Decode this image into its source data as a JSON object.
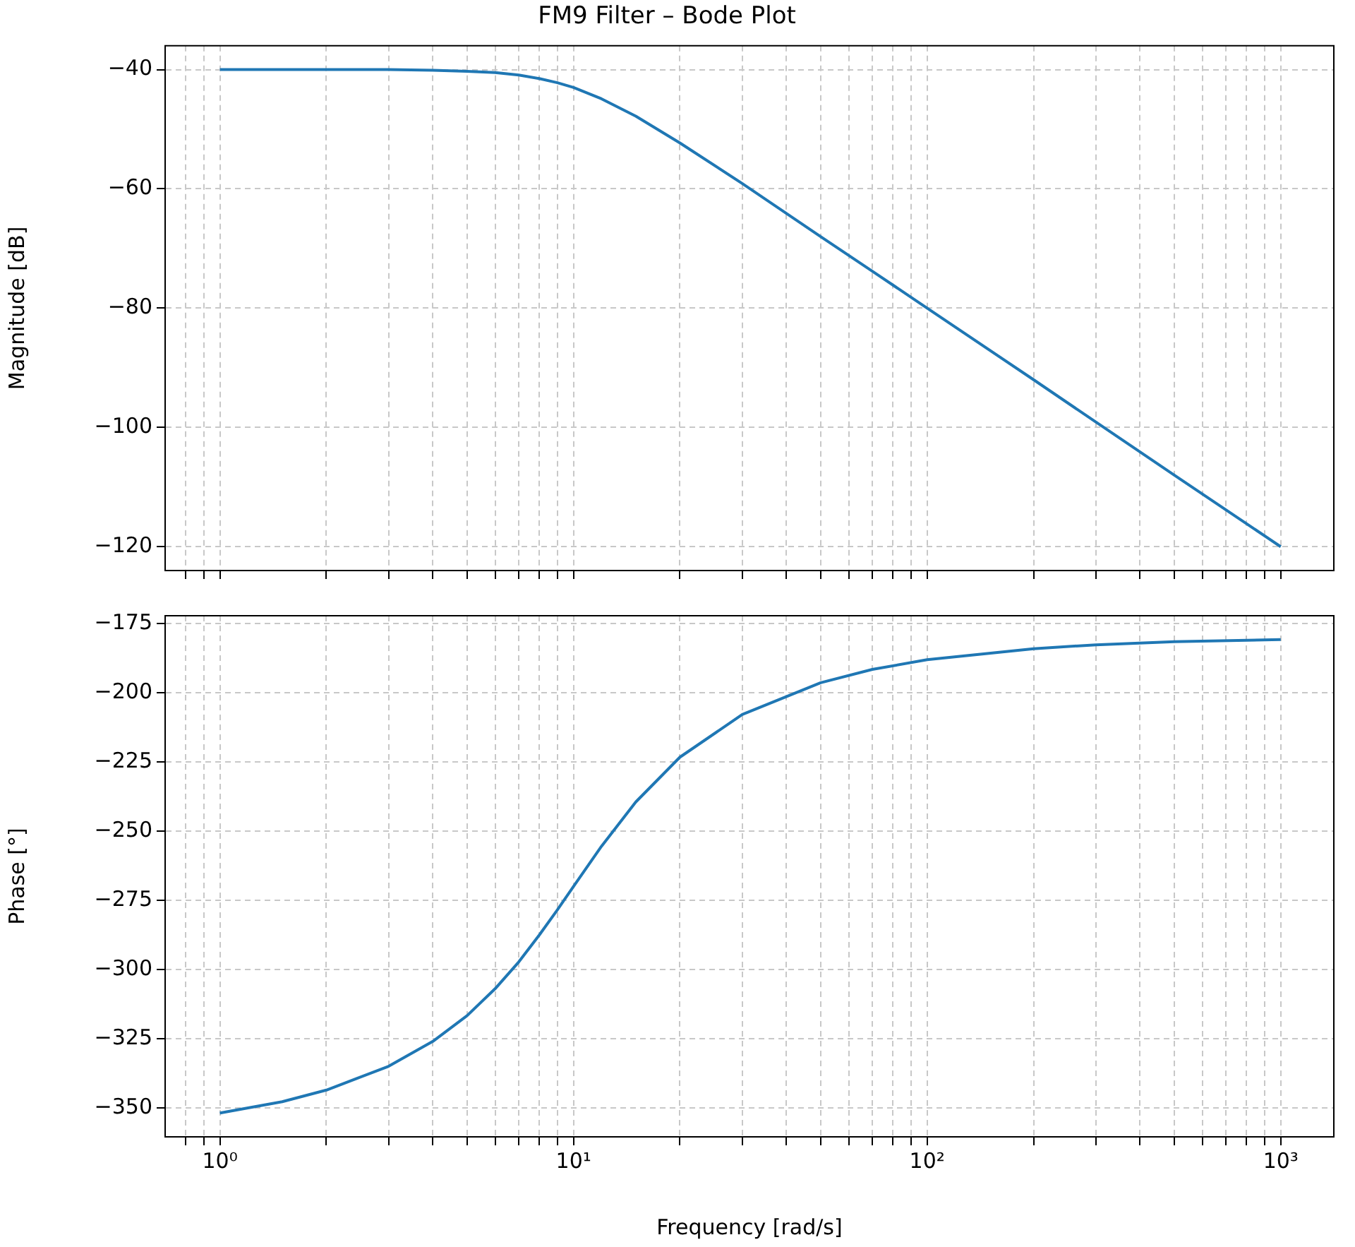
{
  "chart_data": [
    {
      "type": "line",
      "title": "FM9 Filter – Bode Plot",
      "ylabel": "Magnitude [dB]",
      "log": "x",
      "grid": true,
      "tick_labels": "y",
      "x": [
        1,
        1.5,
        2,
        3,
        4,
        5,
        6,
        7,
        8,
        9,
        10,
        12,
        15,
        20,
        30,
        50,
        70,
        100,
        200,
        300,
        500,
        1000
      ],
      "series": [
        {
          "color": "#1f77b4",
          "values": [
            -40,
            -40,
            -40,
            -40,
            -40.1,
            -40.3,
            -40.5,
            -40.9,
            -41.5,
            -42.2,
            -43,
            -44.9,
            -47.8,
            -52.3,
            -59.1,
            -68,
            -73.8,
            -80,
            -92,
            -99.1,
            -108,
            -120
          ]
        }
      ],
      "xlim": [
        0.708,
        1413
      ],
      "ylim": [
        -124,
        -36
      ],
      "xticks": [
        {
          "value": 0.8,
          "label": null
        },
        {
          "value": 0.9,
          "label": null
        },
        {
          "value": 1,
          "label": null
        },
        {
          "value": 2,
          "label": null
        },
        {
          "value": 3,
          "label": null
        },
        {
          "value": 4,
          "label": null
        },
        {
          "value": 5,
          "label": null
        },
        {
          "value": 6,
          "label": null
        },
        {
          "value": 7,
          "label": null
        },
        {
          "value": 8,
          "label": null
        },
        {
          "value": 9,
          "label": null
        },
        {
          "value": 10,
          "label": null
        },
        {
          "value": 20,
          "label": null
        },
        {
          "value": 30,
          "label": null
        },
        {
          "value": 40,
          "label": null
        },
        {
          "value": 50,
          "label": null
        },
        {
          "value": 60,
          "label": null
        },
        {
          "value": 70,
          "label": null
        },
        {
          "value": 80,
          "label": null
        },
        {
          "value": 90,
          "label": null
        },
        {
          "value": 100,
          "label": null
        },
        {
          "value": 200,
          "label": null
        },
        {
          "value": 300,
          "label": null
        },
        {
          "value": 400,
          "label": null
        },
        {
          "value": 500,
          "label": null
        },
        {
          "value": 600,
          "label": null
        },
        {
          "value": 700,
          "label": null
        },
        {
          "value": 800,
          "label": null
        },
        {
          "value": 900,
          "label": null
        },
        {
          "value": 1000,
          "label": null
        }
      ],
      "yticks": [
        {
          "value": -120,
          "label": "−120"
        },
        {
          "value": -100,
          "label": "−100"
        },
        {
          "value": -80,
          "label": "−80"
        },
        {
          "value": -60,
          "label": "−60"
        },
        {
          "value": -40,
          "label": "−40"
        }
      ]
    },
    {
      "type": "line",
      "xlabel": "Frequency [rad/s]",
      "ylabel": "Phase [°]",
      "log": "x",
      "grid": true,
      "x": [
        1,
        1.5,
        2,
        3,
        4,
        5,
        6,
        7,
        8,
        9,
        10,
        12,
        15,
        20,
        30,
        50,
        70,
        100,
        200,
        300,
        500,
        1000
      ],
      "series": [
        {
          "color": "#1f77b4",
          "values": [
            -351.9,
            -347.8,
            -343.6,
            -335,
            -326,
            -316.7,
            -307,
            -297.3,
            -287.6,
            -278.5,
            -270,
            -255.5,
            -239.5,
            -223.3,
            -207.9,
            -196.4,
            -191.6,
            -188.1,
            -184.1,
            -182.7,
            -181.6,
            -180.8
          ]
        }
      ],
      "xlim": [
        0.708,
        1413
      ],
      "ylim": [
        -360.5,
        -172.2
      ],
      "xticks": [
        {
          "value": 0.8,
          "label": null
        },
        {
          "value": 0.9,
          "label": null
        },
        {
          "value": 1,
          "label": "10⁰"
        },
        {
          "value": 2,
          "label": null
        },
        {
          "value": 3,
          "label": null
        },
        {
          "value": 4,
          "label": null
        },
        {
          "value": 5,
          "label": null
        },
        {
          "value": 6,
          "label": null
        },
        {
          "value": 7,
          "label": null
        },
        {
          "value": 8,
          "label": null
        },
        {
          "value": 9,
          "label": null
        },
        {
          "value": 10,
          "label": "10¹"
        },
        {
          "value": 20,
          "label": null
        },
        {
          "value": 30,
          "label": null
        },
        {
          "value": 40,
          "label": null
        },
        {
          "value": 50,
          "label": null
        },
        {
          "value": 60,
          "label": null
        },
        {
          "value": 70,
          "label": null
        },
        {
          "value": 80,
          "label": null
        },
        {
          "value": 90,
          "label": null
        },
        {
          "value": 100,
          "label": "10²"
        },
        {
          "value": 200,
          "label": null
        },
        {
          "value": 300,
          "label": null
        },
        {
          "value": 400,
          "label": null
        },
        {
          "value": 500,
          "label": null
        },
        {
          "value": 600,
          "label": null
        },
        {
          "value": 700,
          "label": null
        },
        {
          "value": 800,
          "label": null
        },
        {
          "value": 900,
          "label": null
        },
        {
          "value": 1000,
          "label": "10³"
        }
      ],
      "yticks": [
        {
          "value": -350,
          "label": "−350"
        },
        {
          "value": -325,
          "label": "−325"
        },
        {
          "value": -300,
          "label": "−300"
        },
        {
          "value": -275,
          "label": "−275"
        },
        {
          "value": -250,
          "label": "−250"
        },
        {
          "value": -225,
          "label": "−225"
        },
        {
          "value": -200,
          "label": "−200"
        },
        {
          "value": -175,
          "label": "−175"
        }
      ]
    }
  ]
}
